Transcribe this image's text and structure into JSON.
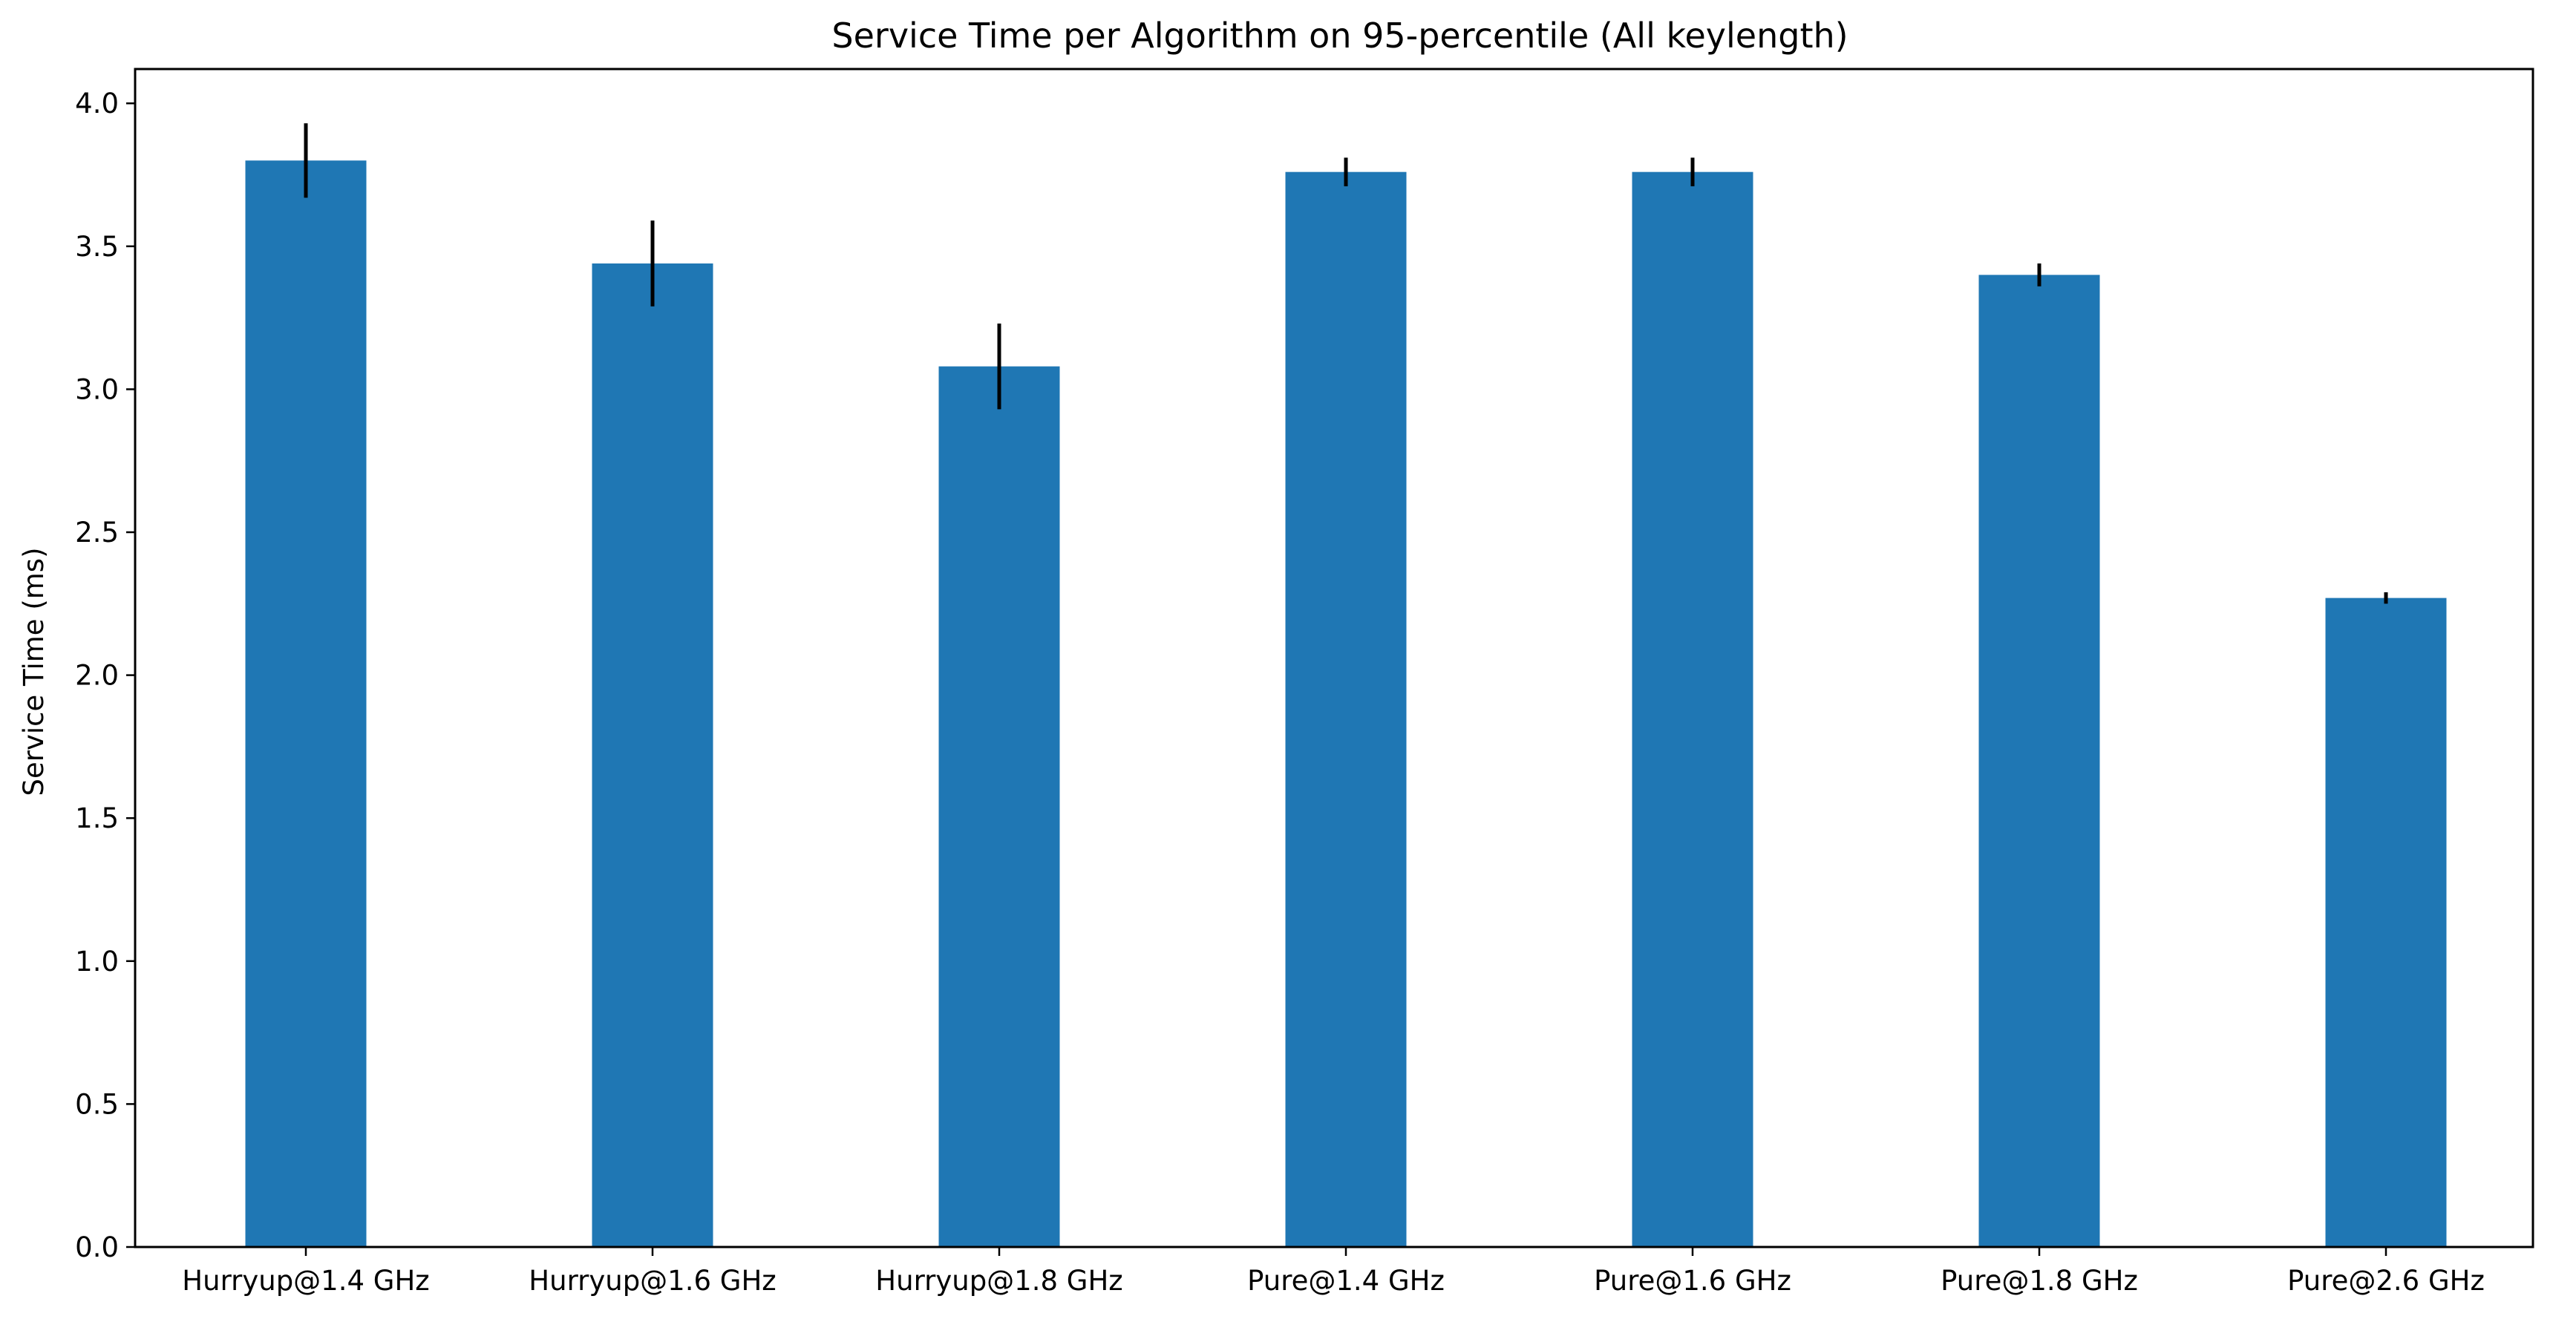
{
  "chart_data": {
    "type": "bar",
    "title": "Service Time per Algorithm on 95-percentile (All keylength)",
    "xlabel": "",
    "ylabel": "Service Time (ms)",
    "ylim": [
      0,
      4.12
    ],
    "yticks": [
      0.0,
      0.5,
      1.0,
      1.5,
      2.0,
      2.5,
      3.0,
      3.5,
      4.0
    ],
    "ytick_labels": [
      "0.0",
      "0.5",
      "1.0",
      "1.5",
      "2.0",
      "2.5",
      "3.0",
      "3.5",
      "4.0"
    ],
    "categories": [
      "Hurryup@1.4 GHz",
      "Hurryup@1.6 GHz",
      "Hurryup@1.8 GHz",
      "Pure@1.4 GHz",
      "Pure@1.6 GHz",
      "Pure@1.8 GHz",
      "Pure@2.6 GHz"
    ],
    "values": [
      3.8,
      3.44,
      3.08,
      3.76,
      3.76,
      3.4,
      2.27
    ],
    "errors": [
      0.13,
      0.15,
      0.15,
      0.05,
      0.05,
      0.04,
      0.02
    ],
    "grid": false,
    "bar_color": "#1f77b4",
    "error_color": "#000000"
  }
}
